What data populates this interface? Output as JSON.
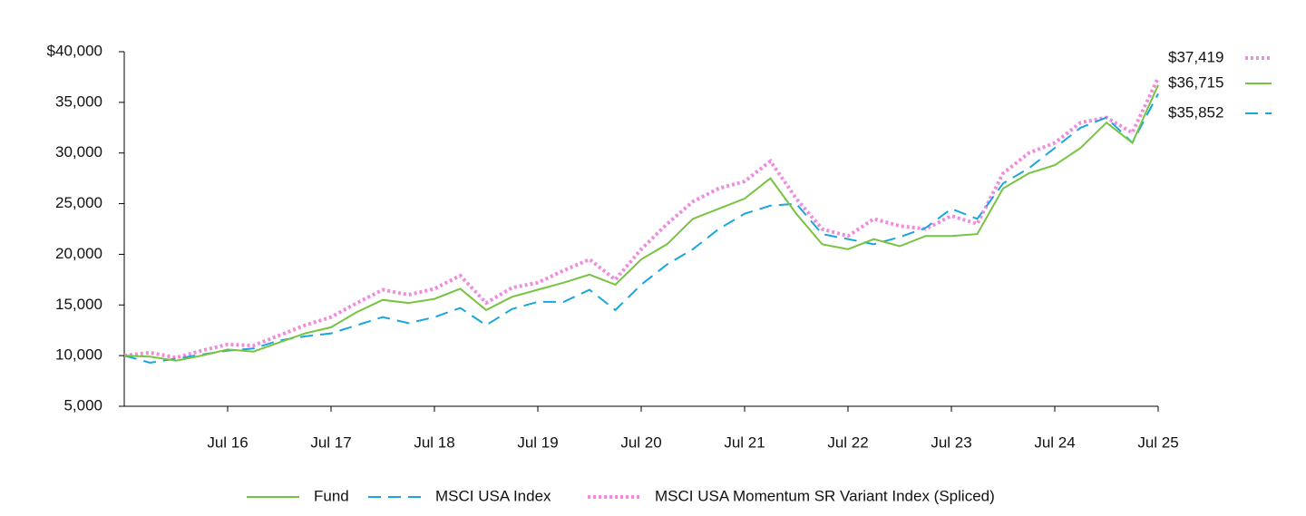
{
  "chart_data": {
    "type": "line",
    "xlim": [
      "2015-07",
      "2025-07"
    ],
    "xticks": [
      {
        "value": "2016-07",
        "label": "Jul 16"
      },
      {
        "value": "2017-07",
        "label": "Jul 17"
      },
      {
        "value": "2018-07",
        "label": "Jul 18"
      },
      {
        "value": "2019-07",
        "label": "Jul 19"
      },
      {
        "value": "2020-07",
        "label": "Jul 20"
      },
      {
        "value": "2021-07",
        "label": "Jul 21"
      },
      {
        "value": "2022-07",
        "label": "Jul 22"
      },
      {
        "value": "2023-07",
        "label": "Jul 23"
      },
      {
        "value": "2024-07",
        "label": "Jul 24"
      },
      {
        "value": "2025-07",
        "label": "Jul 25"
      }
    ],
    "ylim": [
      5000,
      40000
    ],
    "yticks": [
      {
        "value": 5000,
        "label": "5,000"
      },
      {
        "value": 10000,
        "label": "10,000"
      },
      {
        "value": 15000,
        "label": "15,000"
      },
      {
        "value": 20000,
        "label": "20,000"
      },
      {
        "value": 25000,
        "label": "25,000"
      },
      {
        "value": 30000,
        "label": "30,000"
      },
      {
        "value": 35000,
        "label": "35,000"
      },
      {
        "value": 40000,
        "label": "$40,000"
      }
    ],
    "x": [
      "2015-07",
      "2015-10",
      "2016-01",
      "2016-04",
      "2016-07",
      "2016-10",
      "2017-01",
      "2017-04",
      "2017-07",
      "2017-10",
      "2018-01",
      "2018-04",
      "2018-07",
      "2018-10",
      "2019-01",
      "2019-04",
      "2019-07",
      "2019-10",
      "2020-01",
      "2020-04",
      "2020-07",
      "2020-10",
      "2021-01",
      "2021-04",
      "2021-07",
      "2021-10",
      "2022-01",
      "2022-04",
      "2022-07",
      "2022-10",
      "2023-01",
      "2023-04",
      "2023-07",
      "2023-10",
      "2024-01",
      "2024-04",
      "2024-07",
      "2024-10",
      "2025-01",
      "2025-04",
      "2025-07"
    ],
    "series": [
      {
        "name": "Fund",
        "color": "#76c442",
        "values": [
          10000,
          9900,
          9500,
          10000,
          10600,
          10400,
          11300,
          12200,
          12800,
          14300,
          15500,
          15200,
          15600,
          16600,
          14500,
          15800,
          16500,
          17200,
          18000,
          17000,
          19500,
          21000,
          23500,
          24500,
          25500,
          27500,
          24000,
          21000,
          20500,
          21500,
          20800,
          21800,
          21800,
          22000,
          26500,
          28000,
          28800,
          30500,
          33000,
          31000,
          36715
        ],
        "value_labels": [
          null,
          null,
          null,
          null,
          null,
          null,
          null,
          null,
          null,
          null,
          null,
          null,
          null,
          null,
          null,
          null,
          null,
          null,
          null,
          null,
          null,
          null,
          null,
          null,
          null,
          null,
          null,
          null,
          null,
          null,
          null,
          null,
          null,
          null,
          null,
          null,
          null,
          null,
          null,
          null,
          "$36,715"
        ]
      },
      {
        "name": "MSCI USA Index",
        "color": "#1aa6dc",
        "values": [
          10000,
          9300,
          9700,
          10100,
          10500,
          10700,
          11500,
          11900,
          12200,
          13000,
          13800,
          13200,
          13800,
          14700,
          13000,
          14600,
          15300,
          15300,
          16500,
          14500,
          17000,
          19000,
          20500,
          22500,
          24000,
          24800,
          25000,
          22000,
          21500,
          21000,
          21700,
          22600,
          24500,
          23500,
          27000,
          28500,
          30500,
          32500,
          33500,
          31000,
          35852
        ],
        "value_labels": [
          null,
          null,
          null,
          null,
          null,
          null,
          null,
          null,
          null,
          null,
          null,
          null,
          null,
          null,
          null,
          null,
          null,
          null,
          null,
          null,
          null,
          null,
          null,
          null,
          null,
          null,
          null,
          null,
          null,
          null,
          null,
          null,
          null,
          null,
          null,
          null,
          null,
          null,
          null,
          null,
          "$35,852"
        ]
      },
      {
        "name": "MSCI USA Momentum SR Variant Index (Spliced)",
        "color": "#f08ce0",
        "values": [
          10000,
          10300,
          9800,
          10500,
          11100,
          11000,
          12000,
          13000,
          13800,
          15200,
          16500,
          16000,
          16600,
          17900,
          15200,
          16700,
          17200,
          18400,
          19500,
          17500,
          20500,
          23000,
          25200,
          26500,
          27200,
          29200,
          25500,
          22500,
          21800,
          23500,
          22800,
          22500,
          23800,
          23000,
          28000,
          30000,
          31000,
          33000,
          33500,
          32000,
          37419
        ],
        "value_labels": [
          null,
          null,
          null,
          null,
          null,
          null,
          null,
          null,
          null,
          null,
          null,
          null,
          null,
          null,
          null,
          null,
          null,
          null,
          null,
          null,
          null,
          null,
          null,
          null,
          null,
          null,
          null,
          null,
          null,
          null,
          null,
          null,
          null,
          null,
          null,
          null,
          null,
          null,
          null,
          null,
          "$37,419"
        ]
      }
    ]
  }
}
